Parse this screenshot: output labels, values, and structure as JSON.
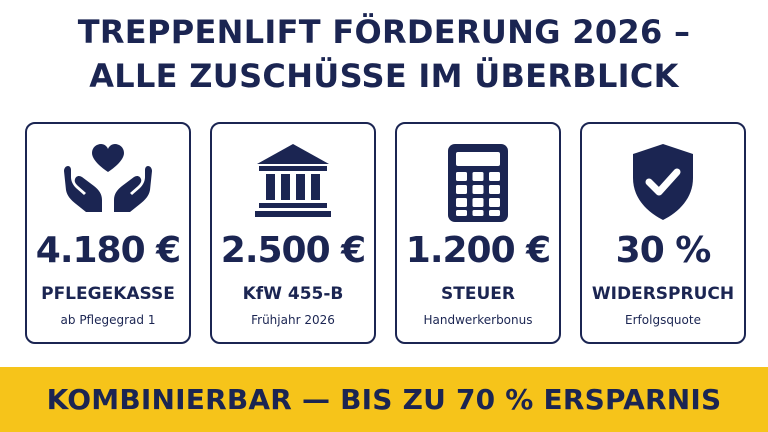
{
  "header": {
    "title_line1": "TREPPENLIFT FÖRDERUNG 2026 –",
    "title_line2": "ALLE ZUSCHÜSSE IM ÜBERBLICK"
  },
  "cards": [
    {
      "icon": "hands-heart-icon",
      "amount": "4.180 €",
      "label": "PFLEGEKASSE",
      "sub": "ab Pflegegrad 1"
    },
    {
      "icon": "bank-building-icon",
      "amount": "2.500 €",
      "label": "KfW 455-B",
      "sub": "Frühjahr 2026"
    },
    {
      "icon": "calculator-icon",
      "amount": "1.200 €",
      "label": "STEUER",
      "sub": "Handwerkerbonus"
    },
    {
      "icon": "shield-check-icon",
      "amount": "30 %",
      "label": "WIDERSPRUCH",
      "sub": "Erfolgsquote"
    }
  ],
  "banner": {
    "text": "KOMBINIERBAR — BIS ZU 70 % ERSPARNIS"
  },
  "colors": {
    "navy": "#1b2552",
    "banner_yellow": "#f6c41a",
    "background": "#ffffff"
  }
}
